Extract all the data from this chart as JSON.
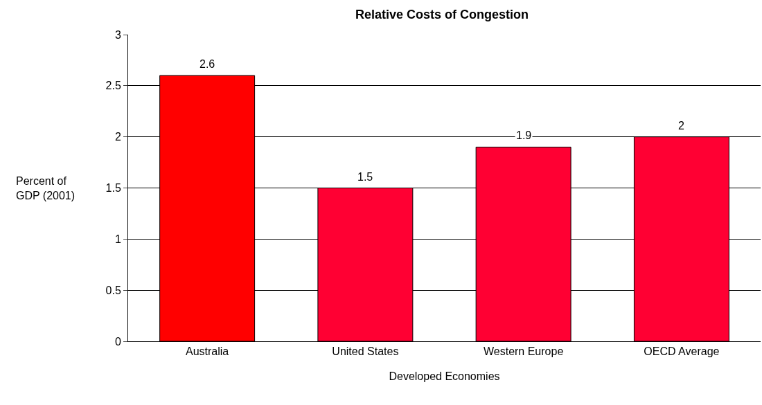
{
  "chart_data": {
    "type": "bar",
    "title": "Relative Costs of Congestion",
    "xlabel": "Developed Economies",
    "ylabel": "Percent of\nGDP (2001)",
    "categories": [
      "Australia",
      "United States",
      "Western Europe",
      "OECD Average"
    ],
    "values": [
      2.6,
      1.5,
      1.9,
      2
    ],
    "colors": [
      "#ff0000",
      "#ff0033",
      "#ff0033",
      "#ff0033"
    ],
    "ylim": [
      0,
      3
    ],
    "yticks": [
      0,
      0.5,
      1,
      1.5,
      2,
      2.5,
      3
    ],
    "grid": "y",
    "data_labels": true,
    "legend": false
  }
}
